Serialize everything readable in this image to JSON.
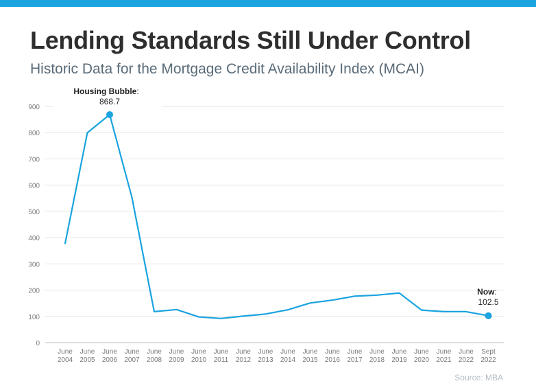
{
  "title": "Lending Standards Still Under Control",
  "subtitle": "Historic Data for the Mortgage Credit Availability Index (MCAI)",
  "source": "Source: MBA",
  "colors": {
    "accent": "#1aa3df",
    "title": "#2e2e2e",
    "subtitle": "#5a6b78",
    "grid": "#e6e6e6"
  },
  "chart_data": {
    "type": "line",
    "categories": [
      [
        "June",
        "2004"
      ],
      [
        "June",
        "2005"
      ],
      [
        "June",
        "2006"
      ],
      [
        "June",
        "2007"
      ],
      [
        "June",
        "2008"
      ],
      [
        "June",
        "2009"
      ],
      [
        "June",
        "2010"
      ],
      [
        "June",
        "2011"
      ],
      [
        "June",
        "2012"
      ],
      [
        "June",
        "2013"
      ],
      [
        "June",
        "2014"
      ],
      [
        "June",
        "2015"
      ],
      [
        "June",
        "2016"
      ],
      [
        "June",
        "2017"
      ],
      [
        "June",
        "2018"
      ],
      [
        "June",
        "2019"
      ],
      [
        "June",
        "2020"
      ],
      [
        "June",
        "2021"
      ],
      [
        "June",
        "2022"
      ],
      [
        "Sept",
        "2022"
      ]
    ],
    "values": [
      378,
      800,
      868.7,
      553,
      118,
      126,
      98,
      92,
      101,
      109,
      125,
      151,
      162,
      177,
      181,
      189,
      124,
      118,
      118,
      102.5
    ],
    "ylim": [
      0,
      900
    ],
    "yticks": [
      0,
      100,
      200,
      300,
      400,
      500,
      600,
      700,
      800,
      900
    ],
    "grid": true,
    "annotations": [
      {
        "index": 2,
        "label": "Housing Bubble",
        "suffix": ":",
        "value": "868.7"
      },
      {
        "index": 19,
        "label": "Now",
        "suffix": ":",
        "value": "102.5"
      }
    ]
  }
}
